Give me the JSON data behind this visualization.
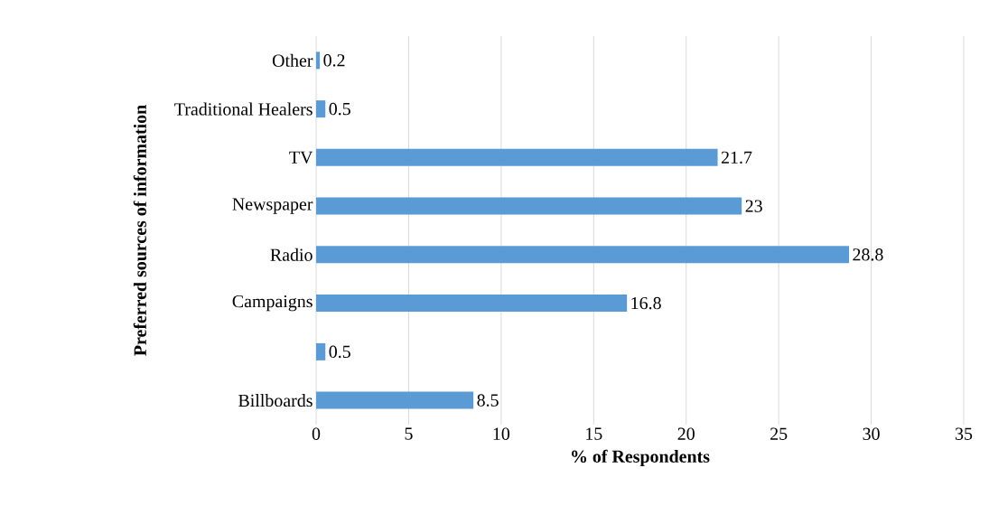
{
  "chart_data": {
    "type": "bar",
    "orientation": "horizontal",
    "xlabel": "% of Respondents",
    "ylabel": "Preferred sources of information",
    "categories": [
      "Other",
      "Traditional Healers",
      "TV",
      "Newspaper",
      "Radio",
      "Campaigns",
      null,
      "Billboards"
    ],
    "values": [
      0.2,
      0.5,
      21.7,
      23,
      28.8,
      16.8,
      0.5,
      8.5
    ],
    "color": "#5b9bd5",
    "xlim": [
      0,
      35
    ],
    "xticks": [
      0,
      5,
      10,
      15,
      20,
      25,
      30,
      35
    ],
    "grid": "x",
    "data_labels": true
  }
}
